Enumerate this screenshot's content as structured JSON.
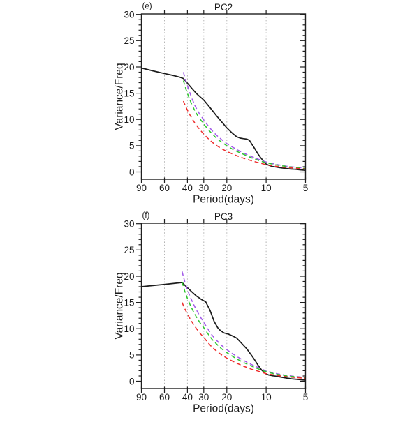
{
  "figure": {
    "background": "#ffffff"
  },
  "style": {
    "axis_color": "#1f1f1f",
    "text_color": "#1a1a1a",
    "grid_color": "#b5b5b5"
  },
  "chart_data": [
    {
      "type": "line",
      "panel_label": "(e)",
      "title": "PC2",
      "xlabel": "Period(days)",
      "ylabel": "Variance/Freq",
      "x_axis": {
        "scale": "log-period-reversed",
        "range": [
          90,
          5
        ],
        "major_ticks": [
          90,
          60,
          40,
          30,
          20,
          10,
          5
        ],
        "gridlines": [
          60,
          40,
          30,
          20,
          10
        ]
      },
      "y_axis": {
        "range": [
          0,
          30
        ],
        "major_ticks": [
          0,
          5,
          10,
          15,
          20,
          25,
          30
        ],
        "minor_step": 1
      },
      "series": [
        {
          "name": "black-solid",
          "color": "#1c1c1c",
          "dash": "",
          "width": 1.7,
          "points": [
            [
              90,
              19.8
            ],
            [
              72,
              19.2
            ],
            [
              60,
              18.75
            ],
            [
              52,
              18.4
            ],
            [
              46,
              18.05
            ],
            [
              43,
              17.8
            ],
            [
              40,
              16.9
            ],
            [
              37,
              15.9
            ],
            [
              34,
              14.9
            ],
            [
              32,
              14.3
            ],
            [
              30,
              13.7
            ],
            [
              28,
              12.8
            ],
            [
              26,
              11.8
            ],
            [
              24,
              10.7
            ],
            [
              22,
              9.6
            ],
            [
              20,
              8.4
            ],
            [
              18,
              7.3
            ],
            [
              16.8,
              6.7
            ],
            [
              15.8,
              6.45
            ],
            [
              15,
              6.35
            ],
            [
              14,
              6.25
            ],
            [
              13.4,
              6.0
            ],
            [
              12.8,
              5.2
            ],
            [
              12.2,
              4.4
            ],
            [
              11.6,
              3.5
            ],
            [
              11,
              2.7
            ],
            [
              10.5,
              2.1
            ],
            [
              10,
              1.5
            ],
            [
              9.5,
              1.25
            ],
            [
              9,
              1.05
            ],
            [
              8.5,
              0.95
            ],
            [
              8,
              0.85
            ],
            [
              7.5,
              0.75
            ],
            [
              7,
              0.65
            ],
            [
              6.5,
              0.55
            ],
            [
              6,
              0.5
            ],
            [
              5.5,
              0.4
            ],
            [
              5,
              0.3
            ]
          ]
        },
        {
          "name": "purple-dashed",
          "color": "#a159e8",
          "dash": "6 4",
          "width": 1.5,
          "points": [
            [
              43,
              19.0
            ],
            [
              41,
              17.2
            ],
            [
              39,
              15.6
            ],
            [
              37,
              14.0
            ],
            [
              35,
              12.6
            ],
            [
              33,
              11.4
            ],
            [
              31,
              10.4
            ],
            [
              30,
              9.9
            ],
            [
              28,
              8.9
            ],
            [
              26,
              7.9
            ],
            [
              24,
              7.0
            ],
            [
              22,
              6.2
            ],
            [
              20,
              5.4
            ],
            [
              18,
              4.7
            ],
            [
              16,
              4.0
            ],
            [
              15,
              3.65
            ],
            [
              14,
              3.3
            ],
            [
              13,
              2.95
            ],
            [
              12,
              2.6
            ],
            [
              11,
              2.25
            ],
            [
              10,
              1.9
            ],
            [
              9,
              1.6
            ],
            [
              8,
              1.35
            ],
            [
              7,
              1.1
            ],
            [
              6,
              0.9
            ],
            [
              5,
              0.7
            ]
          ]
        },
        {
          "name": "green-dashed",
          "color": "#2dc62d",
          "dash": "6 4",
          "width": 1.5,
          "points": [
            [
              43,
              17.4
            ],
            [
              41,
              15.7
            ],
            [
              39,
              14.2
            ],
            [
              37,
              12.8
            ],
            [
              35,
              11.6
            ],
            [
              33,
              10.5
            ],
            [
              31,
              9.6
            ],
            [
              30,
              9.1
            ],
            [
              28,
              8.2
            ],
            [
              26,
              7.3
            ],
            [
              24,
              6.45
            ],
            [
              22,
              5.7
            ],
            [
              20,
              5.0
            ],
            [
              18,
              4.3
            ],
            [
              16,
              3.7
            ],
            [
              15,
              3.4
            ],
            [
              14,
              3.05
            ],
            [
              13,
              2.7
            ],
            [
              12,
              2.4
            ],
            [
              11,
              2.05
            ],
            [
              10,
              1.75
            ],
            [
              9,
              1.5
            ],
            [
              8,
              1.25
            ],
            [
              7,
              1.05
            ],
            [
              6,
              0.85
            ],
            [
              5,
              0.65
            ]
          ]
        },
        {
          "name": "red-dashed",
          "color": "#ee2c2c",
          "dash": "6 4",
          "width": 1.5,
          "points": [
            [
              43,
              13.5
            ],
            [
              41,
              12.3
            ],
            [
              39,
              11.2
            ],
            [
              37,
              10.2
            ],
            [
              35,
              9.25
            ],
            [
              33,
              8.4
            ],
            [
              31,
              7.6
            ],
            [
              30,
              7.2
            ],
            [
              28,
              6.45
            ],
            [
              26,
              5.7
            ],
            [
              24,
              5.05
            ],
            [
              22,
              4.45
            ],
            [
              20,
              3.9
            ],
            [
              18,
              3.4
            ],
            [
              16,
              2.9
            ],
            [
              15,
              2.65
            ],
            [
              14,
              2.4
            ],
            [
              13,
              2.15
            ],
            [
              12,
              1.9
            ],
            [
              11,
              1.65
            ],
            [
              10,
              1.4
            ],
            [
              9,
              1.2
            ],
            [
              8,
              1.0
            ],
            [
              7,
              0.85
            ],
            [
              6,
              0.7
            ],
            [
              5,
              0.55
            ]
          ]
        }
      ]
    },
    {
      "type": "line",
      "panel_label": "(f)",
      "title": "PC3",
      "xlabel": "Period(days)",
      "ylabel": "Variance/Freq",
      "x_axis": {
        "scale": "log-period-reversed",
        "range": [
          90,
          5
        ],
        "major_ticks": [
          90,
          60,
          40,
          30,
          20,
          10,
          5
        ],
        "gridlines": [
          60,
          40,
          30,
          20,
          10
        ]
      },
      "y_axis": {
        "range": [
          0,
          30
        ],
        "major_ticks": [
          0,
          5,
          10,
          15,
          20,
          25,
          30
        ],
        "minor_step": 1
      },
      "series": [
        {
          "name": "black-solid",
          "color": "#1c1c1c",
          "dash": "",
          "width": 1.7,
          "points": [
            [
              90,
              18.0
            ],
            [
              75,
              18.2
            ],
            [
              62,
              18.4
            ],
            [
              52,
              18.6
            ],
            [
              44,
              18.8
            ],
            [
              40,
              17.8
            ],
            [
              37,
              17.0
            ],
            [
              34,
              16.2
            ],
            [
              31,
              15.5
            ],
            [
              29,
              15.1
            ],
            [
              27,
              13.6
            ],
            [
              25,
              11.4
            ],
            [
              23.5,
              10.2
            ],
            [
              22.5,
              9.7
            ],
            [
              21,
              9.2
            ],
            [
              19.5,
              9.0
            ],
            [
              18,
              8.6
            ],
            [
              16.8,
              8.2
            ],
            [
              15.8,
              7.5
            ],
            [
              15,
              6.9
            ],
            [
              14,
              6.1
            ],
            [
              13,
              5.0
            ],
            [
              12.2,
              4.0
            ],
            [
              11.5,
              3.0
            ],
            [
              10.8,
              2.1
            ],
            [
              10.2,
              1.5
            ],
            [
              9.6,
              1.2
            ],
            [
              9,
              1.05
            ],
            [
              8.4,
              0.95
            ],
            [
              7.8,
              0.8
            ],
            [
              7,
              0.6
            ],
            [
              6.4,
              0.45
            ],
            [
              5.8,
              0.35
            ],
            [
              5,
              0.2
            ]
          ]
        },
        {
          "name": "purple-dashed",
          "color": "#a159e8",
          "dash": "6 4",
          "width": 1.5,
          "points": [
            [
              44,
              20.9
            ],
            [
              42,
              19.0
            ],
            [
              40,
              17.4
            ],
            [
              38,
              16.0
            ],
            [
              36,
              14.7
            ],
            [
              34,
              13.5
            ],
            [
              32,
              12.3
            ],
            [
              30,
              11.2
            ],
            [
              28,
              10.0
            ],
            [
              26,
              8.8
            ],
            [
              24,
              7.8
            ],
            [
              22,
              6.85
            ],
            [
              20,
              6.0
            ],
            [
              18,
              5.2
            ],
            [
              16.5,
              4.6
            ],
            [
              15,
              4.0
            ],
            [
              14,
              3.6
            ],
            [
              13,
              3.2
            ],
            [
              12,
              2.8
            ],
            [
              11,
              2.4
            ],
            [
              10,
              1.95
            ],
            [
              9,
              1.65
            ],
            [
              8,
              1.35
            ],
            [
              7,
              1.1
            ],
            [
              6,
              0.9
            ],
            [
              5,
              0.7
            ]
          ]
        },
        {
          "name": "green-dashed",
          "color": "#2dc62d",
          "dash": "6 4",
          "width": 1.5,
          "points": [
            [
              44,
              18.9
            ],
            [
              42,
              17.2
            ],
            [
              40,
              15.75
            ],
            [
              38,
              14.45
            ],
            [
              36,
              13.25
            ],
            [
              34,
              12.15
            ],
            [
              32,
              11.1
            ],
            [
              30,
              10.2
            ],
            [
              28,
              9.1
            ],
            [
              26,
              8.0
            ],
            [
              24,
              7.1
            ],
            [
              22,
              6.2
            ],
            [
              20,
              5.45
            ],
            [
              18,
              4.7
            ],
            [
              16.5,
              4.15
            ],
            [
              15,
              3.6
            ],
            [
              14,
              3.25
            ],
            [
              13,
              2.9
            ],
            [
              12,
              2.55
            ],
            [
              11,
              2.15
            ],
            [
              10,
              1.8
            ],
            [
              9,
              1.5
            ],
            [
              8,
              1.25
            ],
            [
              7,
              1.0
            ],
            [
              6,
              0.85
            ],
            [
              5,
              0.65
            ]
          ]
        },
        {
          "name": "red-dashed",
          "color": "#ee2c2c",
          "dash": "6 4",
          "width": 1.5,
          "points": [
            [
              44,
              15.0
            ],
            [
              42,
              13.85
            ],
            [
              40,
              12.8
            ],
            [
              38,
              11.8
            ],
            [
              36,
              10.85
            ],
            [
              34,
              9.95
            ],
            [
              32,
              9.1
            ],
            [
              30,
              8.35
            ],
            [
              28,
              7.4
            ],
            [
              26,
              6.5
            ],
            [
              24,
              5.75
            ],
            [
              22,
              5.05
            ],
            [
              20,
              4.4
            ],
            [
              18,
              3.8
            ],
            [
              16.5,
              3.35
            ],
            [
              15,
              2.9
            ],
            [
              14,
              2.6
            ],
            [
              13,
              2.3
            ],
            [
              12,
              2.05
            ],
            [
              11,
              1.75
            ],
            [
              10,
              1.45
            ],
            [
              9,
              1.25
            ],
            [
              8,
              1.05
            ],
            [
              7,
              0.85
            ],
            [
              6,
              0.7
            ],
            [
              5,
              0.55
            ]
          ]
        }
      ]
    }
  ]
}
